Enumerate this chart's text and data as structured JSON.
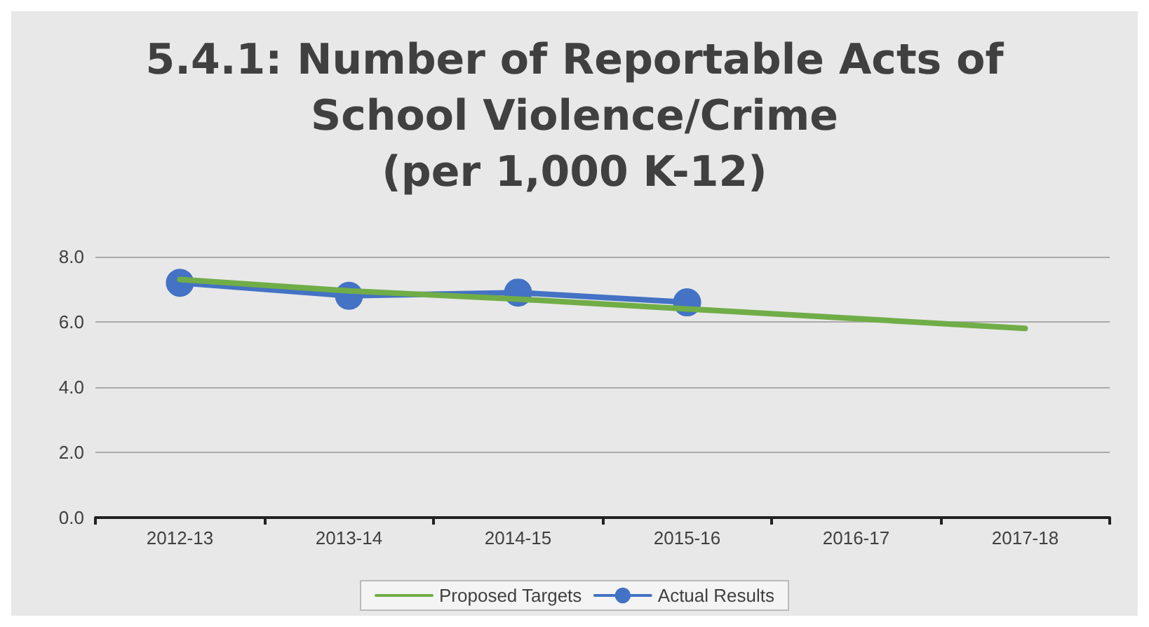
{
  "chart_data": {
    "type": "line",
    "title": "5.4.1: Number of Reportable Acts of\nSchool Violence/Crime\n(per 1,000 K-12)",
    "categories": [
      "2012-13",
      "2013-14",
      "2014-15",
      "2015-16",
      "2016-17",
      "2017-18"
    ],
    "series": [
      {
        "name": "Proposed Targets",
        "color": "#70ad47",
        "marker": "none",
        "values": [
          7.3,
          6.95,
          6.7,
          6.4,
          6.1,
          5.8
        ]
      },
      {
        "name": "Actual Results",
        "color": "#4472c4",
        "marker": "circle",
        "values": [
          7.2,
          6.8,
          6.9,
          6.6,
          null,
          null
        ]
      }
    ],
    "ylim": [
      0,
      8
    ],
    "yticks": [
      {
        "value": 0,
        "label": "0.0"
      },
      {
        "value": 2,
        "label": "2.0"
      },
      {
        "value": 4,
        "label": "4.0"
      },
      {
        "value": 6,
        "label": "6.0"
      },
      {
        "value": 8,
        "label": "8.0"
      }
    ],
    "grid": "y",
    "legend": "bottom"
  }
}
